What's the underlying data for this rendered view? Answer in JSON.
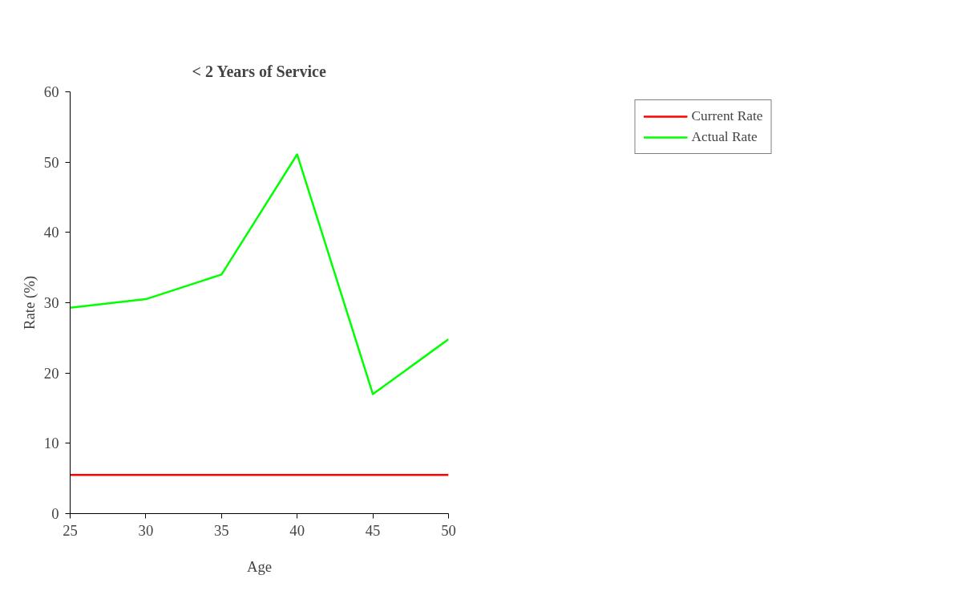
{
  "chart_data": {
    "type": "line",
    "title": "< 2 Years of Service",
    "xlabel": "Age",
    "ylabel": "Rate (%)",
    "x": [
      25,
      30,
      35,
      40,
      45,
      50
    ],
    "series": [
      {
        "name": "Current Rate",
        "color": "#ff0000",
        "values": [
          5.5,
          5.5,
          5.5,
          5.5,
          5.5,
          5.5
        ]
      },
      {
        "name": "Actual Rate",
        "color": "#00ff00",
        "values": [
          29.3,
          30.5,
          34.0,
          51.1,
          17.0,
          24.8
        ]
      }
    ],
    "xlim": [
      25,
      50
    ],
    "xticks": [
      25,
      30,
      35,
      40,
      45,
      50
    ],
    "ylim": [
      0,
      60
    ],
    "yticks": [
      0,
      10,
      20,
      30,
      40,
      50,
      60
    ],
    "grid": false,
    "legend": "top right",
    "marker": "none",
    "line_style": "solid"
  }
}
